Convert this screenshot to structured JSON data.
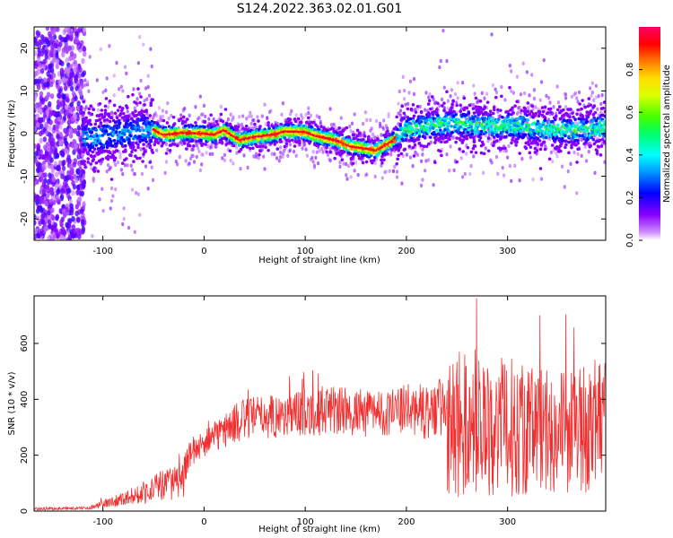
{
  "title": "S124.2022.363.02.01.G01",
  "chart_data": [
    {
      "type": "heatmap",
      "xlabel": "Height of straight line (km)",
      "ylabel": "Frequency (Hz)",
      "xlim": [
        -168,
        397
      ],
      "ylim": [
        -25,
        25
      ],
      "xticks": [
        -100,
        0,
        100,
        200,
        300
      ],
      "yticks": [
        -20,
        -10,
        0,
        10,
        20
      ],
      "colorbar": {
        "label": "Normalized spectral amplitude",
        "range": [
          0,
          1
        ],
        "ticks": [
          0.0,
          0.2,
          0.4,
          0.6,
          0.8
        ]
      },
      "ridge_frequency_hz": {
        "x": [
          -110,
          -80,
          -60,
          -50,
          -40,
          -20,
          0,
          10,
          20,
          35,
          50,
          70,
          80,
          100,
          110,
          130,
          145,
          160,
          170,
          185,
          200,
          215,
          230,
          250,
          265,
          280,
          300,
          320,
          340,
          360,
          380,
          397
        ],
        "y": [
          -1,
          0,
          1,
          1,
          -0.3,
          0.2,
          0,
          -0.3,
          0.8,
          -1.5,
          -0.8,
          -0.2,
          0.5,
          0.4,
          -0.5,
          -1.5,
          -3,
          -3.5,
          -4,
          -2,
          1,
          1.5,
          2,
          2.5,
          2,
          1.8,
          2,
          1.5,
          1,
          0.8,
          1,
          1.5
        ]
      }
    },
    {
      "type": "line",
      "xlabel": "Height of straight line (km)",
      "ylabel": "SNR (10 * v/v)",
      "xlim": [
        -168,
        397
      ],
      "ylim": [
        0,
        770
      ],
      "xticks": [
        -100,
        0,
        100,
        200,
        300
      ],
      "yticks": [
        0,
        200,
        400,
        600
      ],
      "series": [
        {
          "color": "#f03030",
          "envelope_x": [
            -168,
            -120,
            -110,
            -100,
            -90,
            -80,
            -70,
            -60,
            -50,
            -40,
            -30,
            -20,
            -15,
            -10,
            0,
            10,
            20,
            40,
            60,
            80,
            100,
            120,
            140,
            160,
            180,
            200,
            220,
            235,
            240,
            250,
            270,
            290,
            310,
            330,
            350,
            370,
            397
          ],
          "envelope_mean": [
            8,
            10,
            15,
            25,
            35,
            45,
            55,
            65,
            80,
            95,
            100,
            120,
            200,
            220,
            240,
            260,
            290,
            330,
            340,
            340,
            360,
            360,
            355,
            350,
            350,
            365,
            355,
            360,
            280,
            300,
            310,
            300,
            300,
            295,
            290,
            290,
            300
          ],
          "envelope_spread": [
            5,
            5,
            8,
            15,
            20,
            25,
            30,
            40,
            50,
            60,
            60,
            70,
            50,
            50,
            50,
            55,
            65,
            75,
            80,
            80,
            90,
            90,
            90,
            85,
            80,
            90,
            100,
            120,
            250,
            260,
            260,
            250,
            250,
            240,
            230,
            230,
            230
          ]
        }
      ]
    }
  ]
}
